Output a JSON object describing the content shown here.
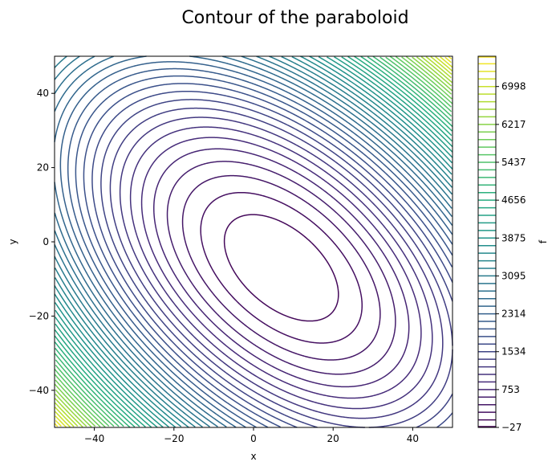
{
  "chart_data": {
    "type": "contour",
    "title": "Contour of the paraboloid",
    "xlabel": "x",
    "ylabel": "y",
    "colorbar_label": "f",
    "xlim": [
      -50,
      50
    ],
    "ylim": [
      -50,
      50
    ],
    "xticks": [
      "−40",
      "−20",
      "0",
      "20",
      "40"
    ],
    "xtick_values": [
      -40,
      -20,
      0,
      20,
      40
    ],
    "yticks": [
      "−40",
      "−20",
      "0",
      "20",
      "40"
    ],
    "ytick_values": [
      -40,
      -20,
      0,
      20,
      40
    ],
    "colorbar_ticks": [
      "−27",
      "753",
      "1534",
      "2314",
      "3095",
      "3875",
      "4656",
      "5437",
      "6217",
      "6998"
    ],
    "colorbar_tick_values": [
      -27,
      753,
      1534,
      2314,
      3095,
      3875,
      4656,
      5437,
      6217,
      6998
    ],
    "levels": {
      "min": -27,
      "max": 7622,
      "count": 50
    },
    "surface": {
      "form": "k*((x-x0)^2 + (x-x0)*(y-y0) + (y-y0)^2) + fmin",
      "x0": 7,
      "y0": -7,
      "k": 1.013,
      "fmin": -27
    },
    "colormap": "viridis",
    "colormap_stops": [
      "#440154",
      "#472d7b",
      "#3b528b",
      "#2c728e",
      "#21918c",
      "#28ae80",
      "#5ec962",
      "#addc30",
      "#fde725"
    ],
    "grid": false
  }
}
